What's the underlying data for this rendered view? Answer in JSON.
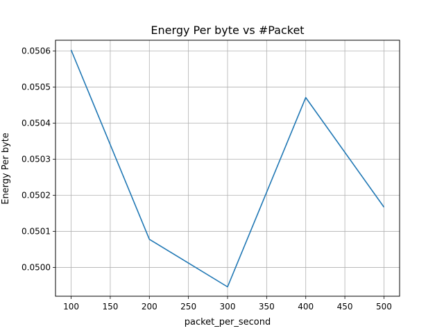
{
  "chart_data": {
    "type": "line",
    "title": "Energy Per byte vs #Packet",
    "xlabel": "packet_per_second",
    "ylabel": "Energy Per byte",
    "x": [
      100,
      200,
      300,
      400,
      500
    ],
    "series": [
      {
        "values": [
          0.050603,
          0.050078,
          0.049946,
          0.050471,
          0.050167
        ]
      }
    ],
    "xlim": [
      80,
      520
    ],
    "ylim": [
      0.04992,
      0.05063
    ],
    "xticks": [
      100,
      150,
      200,
      250,
      300,
      350,
      400,
      450,
      500
    ],
    "yticks": [
      0.05,
      0.0501,
      0.0502,
      0.0503,
      0.0504,
      0.0505,
      0.0506
    ],
    "xtick_labels": [
      "100",
      "150",
      "200",
      "250",
      "300",
      "350",
      "400",
      "450",
      "500"
    ],
    "ytick_labels": [
      "0.0500",
      "0.0501",
      "0.0502",
      "0.0503",
      "0.0504",
      "0.0505",
      "0.0506"
    ],
    "grid": true,
    "line_color": "#1f77b4",
    "grid_color": "#b0b0b0"
  }
}
